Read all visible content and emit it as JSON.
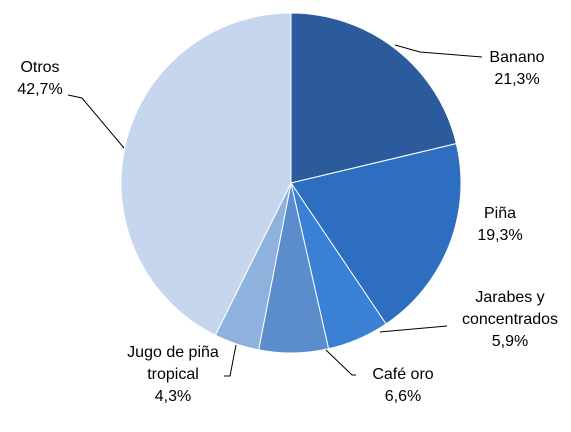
{
  "chart_data": {
    "type": "pie",
    "categories": [
      "Banano",
      "Piña",
      "Jarabes y concentrados",
      "Café oro",
      "Jugo de piña tropical",
      "Otros"
    ],
    "values": [
      21.3,
      19.3,
      5.9,
      6.6,
      4.3,
      42.7
    ],
    "value_labels": [
      "21,3%",
      "19,3%",
      "5,9%",
      "6,6%",
      "4,3%",
      "42,7%"
    ],
    "colors": [
      "#2b5b9c",
      "#2e6ec0",
      "#3a80d4",
      "#5b8dcd",
      "#8fb1dd",
      "#c6d6ee"
    ]
  }
}
